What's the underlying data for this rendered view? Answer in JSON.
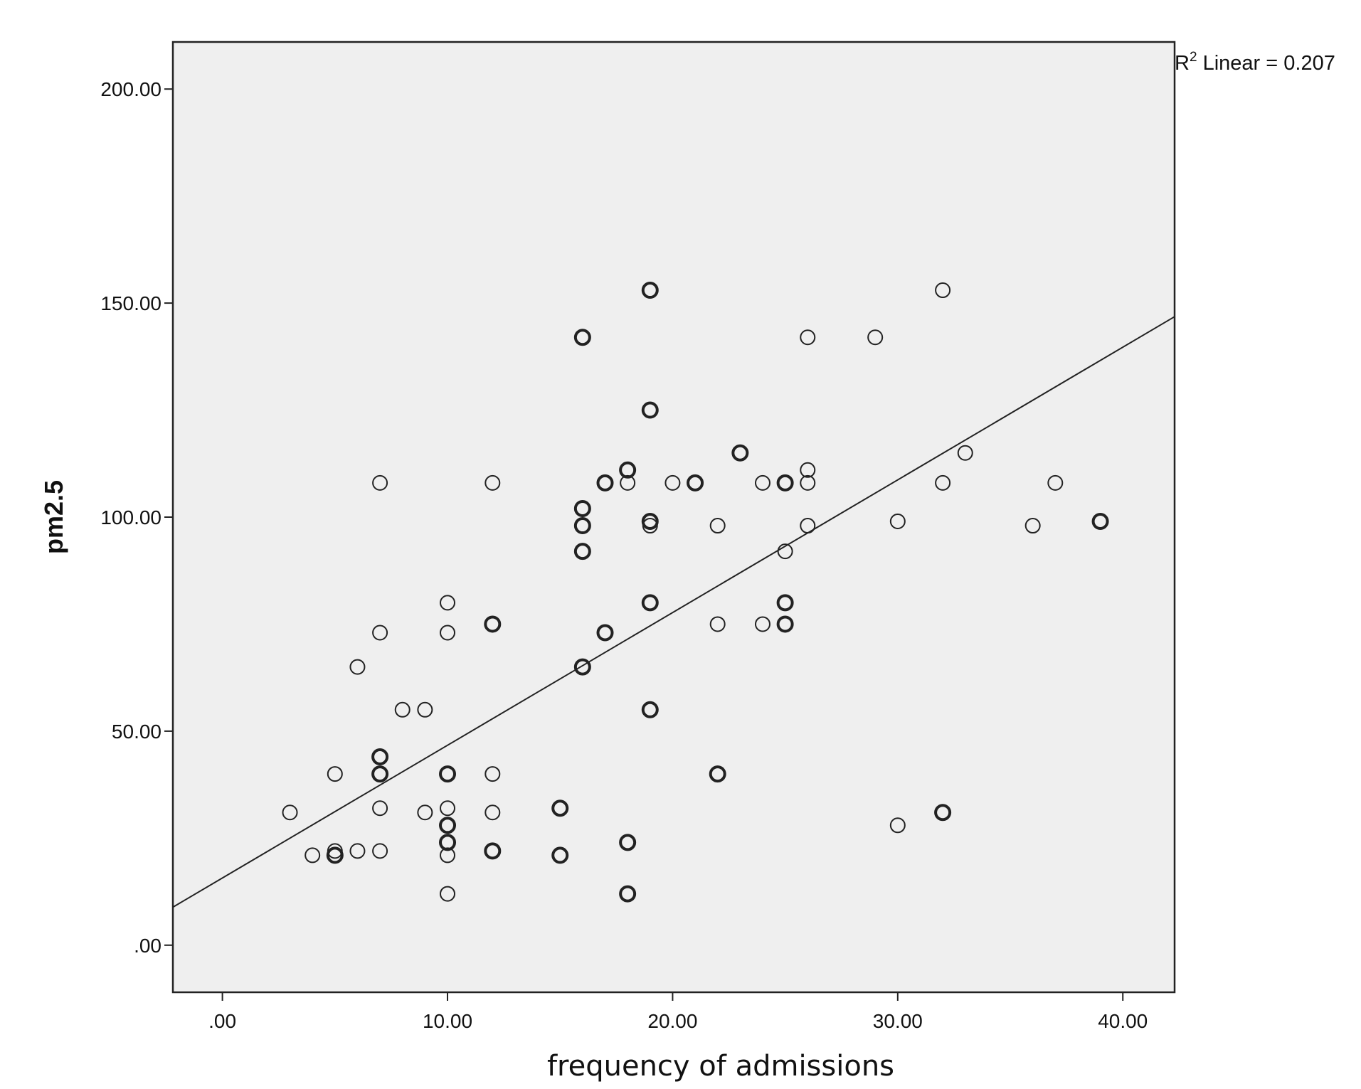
{
  "chart_data": {
    "type": "scatter",
    "title": "",
    "xlabel": "frequency of admissions",
    "ylabel": "pm2.5",
    "xlim": [
      -2.2,
      42.3
    ],
    "ylim": [
      -11,
      211
    ],
    "x_ticks": [
      0,
      10,
      20,
      30,
      40
    ],
    "x_tick_labels": [
      ".00",
      "10.00",
      "20.00",
      "30.00",
      "40.00"
    ],
    "y_ticks": [
      0,
      50,
      100,
      150,
      200
    ],
    "y_tick_labels": [
      ".00",
      "50.00",
      "100.00",
      "150.00",
      "200.00"
    ],
    "grid": false,
    "plot_background": "#efefef",
    "marker_color": "#222222",
    "annotation": {
      "prefix": "R",
      "superscript": "2",
      "text": " Linear = 0.207"
    },
    "fit_line": {
      "intercept": 15.7,
      "slope": 3.1,
      "x_range": [
        -2.2,
        42.3
      ]
    },
    "points": [
      {
        "x": 3,
        "y": 31
      },
      {
        "x": 4,
        "y": 21
      },
      {
        "x": 5,
        "y": 21,
        "overlap": true
      },
      {
        "x": 5,
        "y": 22
      },
      {
        "x": 5,
        "y": 40
      },
      {
        "x": 6,
        "y": 22
      },
      {
        "x": 6,
        "y": 65
      },
      {
        "x": 7,
        "y": 22
      },
      {
        "x": 7,
        "y": 32
      },
      {
        "x": 7,
        "y": 40,
        "overlap": true
      },
      {
        "x": 7,
        "y": 44,
        "overlap": true
      },
      {
        "x": 7,
        "y": 73
      },
      {
        "x": 7,
        "y": 108
      },
      {
        "x": 8,
        "y": 55
      },
      {
        "x": 9,
        "y": 31
      },
      {
        "x": 9,
        "y": 55
      },
      {
        "x": 10,
        "y": 12
      },
      {
        "x": 10,
        "y": 21
      },
      {
        "x": 10,
        "y": 24,
        "overlap": true
      },
      {
        "x": 10,
        "y": 28,
        "overlap": true
      },
      {
        "x": 10,
        "y": 32
      },
      {
        "x": 10,
        "y": 40,
        "overlap": true
      },
      {
        "x": 10,
        "y": 73
      },
      {
        "x": 10,
        "y": 80
      },
      {
        "x": 12,
        "y": 22,
        "overlap": true
      },
      {
        "x": 12,
        "y": 31
      },
      {
        "x": 12,
        "y": 40
      },
      {
        "x": 12,
        "y": 75,
        "overlap": true
      },
      {
        "x": 12,
        "y": 108
      },
      {
        "x": 15,
        "y": 21,
        "overlap": true
      },
      {
        "x": 15,
        "y": 32,
        "overlap": true
      },
      {
        "x": 16,
        "y": 65,
        "overlap": true
      },
      {
        "x": 16,
        "y": 92,
        "overlap": true
      },
      {
        "x": 16,
        "y": 98,
        "overlap": true
      },
      {
        "x": 16,
        "y": 102,
        "overlap": true
      },
      {
        "x": 16,
        "y": 142,
        "overlap": true
      },
      {
        "x": 17,
        "y": 73,
        "overlap": true
      },
      {
        "x": 17,
        "y": 108,
        "overlap": true
      },
      {
        "x": 18,
        "y": 12,
        "overlap": true
      },
      {
        "x": 18,
        "y": 24,
        "overlap": true
      },
      {
        "x": 18,
        "y": 108
      },
      {
        "x": 18,
        "y": 111,
        "overlap": true
      },
      {
        "x": 19,
        "y": 55,
        "overlap": true
      },
      {
        "x": 19,
        "y": 80,
        "overlap": true
      },
      {
        "x": 19,
        "y": 98
      },
      {
        "x": 19,
        "y": 99,
        "overlap": true
      },
      {
        "x": 19,
        "y": 125,
        "overlap": true
      },
      {
        "x": 19,
        "y": 153,
        "overlap": true
      },
      {
        "x": 20,
        "y": 108
      },
      {
        "x": 21,
        "y": 108,
        "overlap": true
      },
      {
        "x": 22,
        "y": 40,
        "overlap": true
      },
      {
        "x": 22,
        "y": 75
      },
      {
        "x": 22,
        "y": 98
      },
      {
        "x": 23,
        "y": 115,
        "overlap": true
      },
      {
        "x": 24,
        "y": 75
      },
      {
        "x": 24,
        "y": 108
      },
      {
        "x": 25,
        "y": 75,
        "overlap": true
      },
      {
        "x": 25,
        "y": 80,
        "overlap": true
      },
      {
        "x": 25,
        "y": 92
      },
      {
        "x": 25,
        "y": 108,
        "overlap": true
      },
      {
        "x": 26,
        "y": 98
      },
      {
        "x": 26,
        "y": 108
      },
      {
        "x": 26,
        "y": 111
      },
      {
        "x": 26,
        "y": 142
      },
      {
        "x": 29,
        "y": 142
      },
      {
        "x": 30,
        "y": 28
      },
      {
        "x": 30,
        "y": 99
      },
      {
        "x": 32,
        "y": 31,
        "overlap": true
      },
      {
        "x": 32,
        "y": 108
      },
      {
        "x": 32,
        "y": 153
      },
      {
        "x": 33,
        "y": 115
      },
      {
        "x": 36,
        "y": 98
      },
      {
        "x": 37,
        "y": 108
      },
      {
        "x": 39,
        "y": 99,
        "overlap": true
      }
    ]
  }
}
